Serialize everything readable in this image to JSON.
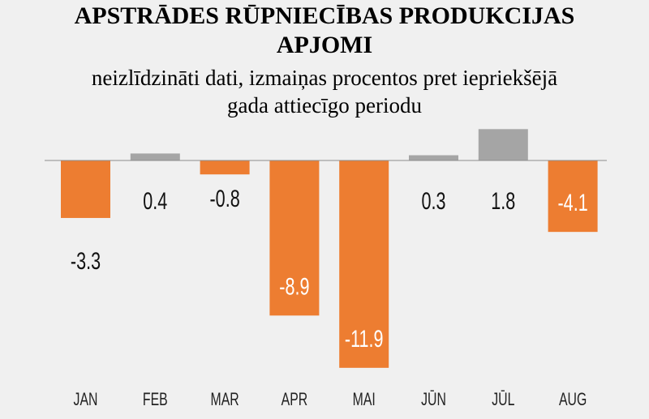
{
  "chart_data": {
    "type": "bar",
    "title_lines": [
      "APSTRĀDES RŪPNIECĪBAS PRODUKCIJAS",
      "APJOMI"
    ],
    "subtitle_lines": [
      "neizlīdzināti dati, izmaiņas procentos pret iepriekšējā",
      "gada attiecīgo periodu"
    ],
    "categories": [
      "JAN",
      "FEB",
      "MAR",
      "APR",
      "MAI",
      "JŪN",
      "JŪL",
      "AUG"
    ],
    "values": [
      -3.3,
      0.4,
      -0.8,
      -8.9,
      -11.9,
      0.3,
      1.8,
      -4.1
    ],
    "value_labels": [
      "-3.3",
      "0.4",
      "-0.8",
      "-8.9",
      "-11.9",
      "0.3",
      "1.8",
      "-4.1"
    ],
    "xlabel": "",
    "ylabel": "",
    "grid": false,
    "colors": {
      "negative": "#ed7d31",
      "positive": "#a5a5a5",
      "axis": "#8c8c8c"
    }
  }
}
